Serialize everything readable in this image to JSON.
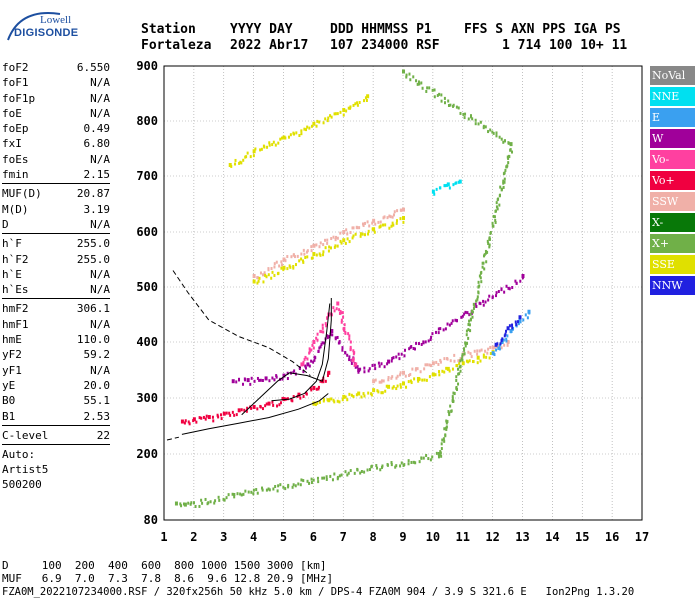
{
  "logo": {
    "line1": "Lowell",
    "line2": "DIGISONDE"
  },
  "header": {
    "labels": [
      "Station",
      "YYYY DAY",
      "DDD HHMMSS P1",
      "FFS S AXN PPS IGA PS"
    ],
    "values": [
      "Fortaleza",
      "2022 Abr17",
      "107 234000 RSF",
      "1 714 100 10+ 11"
    ]
  },
  "params_group1": [
    {
      "name": "foF2",
      "value": "6.550"
    },
    {
      "name": "foF1",
      "value": "N/A"
    },
    {
      "name": "foF1p",
      "value": "N/A"
    },
    {
      "name": "foE",
      "value": "N/A"
    },
    {
      "name": "foEp",
      "value": "0.49"
    },
    {
      "name": "fxI",
      "value": "6.80"
    },
    {
      "name": "foEs",
      "value": "N/A"
    },
    {
      "name": "fmin",
      "value": "2.15"
    }
  ],
  "params_group2": [
    {
      "name": "MUF(D)",
      "value": "20.87"
    },
    {
      "name": "M(D)",
      "value": "3.19"
    },
    {
      "name": "D",
      "value": "N/A"
    }
  ],
  "params_group3": [
    {
      "name": "h`F",
      "value": "255.0"
    },
    {
      "name": "h`F2",
      "value": "255.0"
    },
    {
      "name": "h`E",
      "value": "N/A"
    },
    {
      "name": "h`Es",
      "value": "N/A"
    }
  ],
  "params_group4": [
    {
      "name": "hmF2",
      "value": "306.1"
    },
    {
      "name": "hmF1",
      "value": "N/A"
    },
    {
      "name": "hmE",
      "value": "110.0"
    },
    {
      "name": "yF2",
      "value": "59.2"
    },
    {
      "name": "yF1",
      "value": "N/A"
    },
    {
      "name": "yE",
      "value": "20.0"
    },
    {
      "name": "B0",
      "value": "55.1"
    },
    {
      "name": "B1",
      "value": "2.53"
    }
  ],
  "params_group5": [
    {
      "name": "C-level",
      "value": "22"
    }
  ],
  "auto_label": "Auto:",
  "artist": "Artist5",
  "artist_version": "500200",
  "legend": [
    {
      "label": "NoVal",
      "color": "#888888"
    },
    {
      "label": "NNE",
      "color": "#00e0f0"
    },
    {
      "label": "E",
      "color": "#3aa0f0"
    },
    {
      "label": "W",
      "color": "#a0009a"
    },
    {
      "label": "Vo-",
      "color": "#ff40a0"
    },
    {
      "label": "Vo+",
      "color": "#f00040"
    },
    {
      "label": "SSW",
      "color": "#f0b0a8"
    },
    {
      "label": "X-",
      "color": "#087808"
    },
    {
      "label": "X+",
      "color": "#70b048"
    },
    {
      "label": "SSE",
      "color": "#e0e000"
    },
    {
      "label": "NNW",
      "color": "#2020e0"
    }
  ],
  "bottom": {
    "d_row": "D     100  200  400  600  800 1000 1500 3000 [km]",
    "muf_row": "MUF   6.9  7.0  7.3  7.8  8.6  9.6 12.8 20.9 [MHz]",
    "file_row": "FZA0M_2022107234000.RSF / 320fx256h 50 kHz 5.0 km / DPS-4 FZA0M 904 / 3.9 S 321.6 E   Ion2Png 1.3.20"
  },
  "chart_data": {
    "type": "scatter",
    "xlim": [
      1,
      17
    ],
    "ylim": [
      80,
      900
    ],
    "x_ticks": [
      "1",
      "2",
      "3",
      "4",
      "5",
      "6",
      "7",
      "8",
      "9",
      "10",
      "11",
      "12",
      "13",
      "14",
      "15",
      "16",
      "17"
    ],
    "y_ticks": [
      "80",
      "200",
      "300",
      "400",
      "500",
      "600",
      "700",
      "800",
      "900"
    ],
    "grid": true,
    "traces": [
      {
        "name": "F2 O-trace",
        "color": "#f00040",
        "points": [
          [
            1.6,
            258
          ],
          [
            2.0,
            262
          ],
          [
            2.5,
            266
          ],
          [
            3.0,
            272
          ],
          [
            3.5,
            278
          ],
          [
            4.0,
            284
          ],
          [
            4.5,
            290
          ],
          [
            5.0,
            298
          ],
          [
            5.5,
            306
          ],
          [
            6.0,
            318
          ],
          [
            6.3,
            330
          ],
          [
            6.5,
            345
          ]
        ]
      },
      {
        "name": "F2 X-trace",
        "color": "#e0e000",
        "points": [
          [
            6.0,
            290
          ],
          [
            6.5,
            296
          ],
          [
            7.0,
            302
          ],
          [
            7.5,
            308
          ],
          [
            8.0,
            314
          ],
          [
            8.5,
            320
          ],
          [
            9.0,
            326
          ],
          [
            9.5,
            334
          ],
          [
            10.0,
            342
          ],
          [
            10.5,
            352
          ],
          [
            11.0,
            362
          ],
          [
            11.5,
            372
          ],
          [
            12.0,
            382
          ]
        ]
      },
      {
        "name": "F2 spread",
        "color": "#f0b0a8",
        "points": [
          [
            8.0,
            330
          ],
          [
            9.0,
            345
          ],
          [
            10.0,
            362
          ],
          [
            11.0,
            378
          ],
          [
            12.0,
            390
          ],
          [
            12.5,
            400
          ]
        ]
      },
      {
        "name": "NNE/E spread",
        "color": "#3aa0f0",
        "points": [
          [
            12.0,
            380
          ],
          [
            12.3,
            400
          ],
          [
            12.6,
            420
          ],
          [
            12.9,
            440
          ],
          [
            13.2,
            455
          ]
        ]
      },
      {
        "name": "NNW spread",
        "color": "#2020e0",
        "points": [
          [
            12.1,
            395
          ],
          [
            12.5,
            425
          ],
          [
            12.9,
            445
          ]
        ]
      },
      {
        "name": "W spread",
        "color": "#a0009a",
        "points": [
          [
            3.3,
            330
          ],
          [
            3.8,
            332
          ],
          [
            4.4,
            335
          ],
          [
            5.0,
            340
          ],
          [
            5.8,
            360
          ],
          [
            6.6,
            420
          ],
          [
            7.5,
            350
          ],
          [
            8.5,
            365
          ],
          [
            13.0,
            520
          ]
        ]
      },
      {
        "name": "Vo- spread",
        "color": "#ff40a0",
        "points": [
          [
            5.6,
            360
          ],
          [
            6.0,
            400
          ],
          [
            6.5,
            450
          ],
          [
            6.8,
            470
          ],
          [
            7.4,
            360
          ]
        ]
      },
      {
        "name": "2F SSW",
        "color": "#f0b0a8",
        "points": [
          [
            4.0,
            520
          ],
          [
            5.0,
            550
          ],
          [
            6.0,
            575
          ],
          [
            7.0,
            600
          ],
          [
            8.0,
            620
          ],
          [
            9.0,
            640
          ]
        ]
      },
      {
        "name": "2F SSE",
        "color": "#e0e000",
        "points": [
          [
            4.0,
            510
          ],
          [
            5.0,
            535
          ],
          [
            6.0,
            560
          ],
          [
            7.0,
            585
          ],
          [
            8.0,
            605
          ],
          [
            9.0,
            625
          ]
        ]
      },
      {
        "name": "2F NNE",
        "color": "#00e0f0",
        "points": [
          [
            10.0,
            672
          ],
          [
            10.5,
            685
          ],
          [
            10.9,
            690
          ]
        ]
      },
      {
        "name": "3F SSE",
        "color": "#e0e000",
        "points": [
          [
            3.2,
            720
          ],
          [
            4.0,
            745
          ],
          [
            5.0,
            770
          ],
          [
            6.0,
            795
          ],
          [
            7.0,
            820
          ],
          [
            7.8,
            845
          ]
        ]
      },
      {
        "name": "X+ low",
        "color": "#70b048",
        "points": [
          [
            1.4,
            110
          ],
          [
            1.7,
            108
          ],
          [
            10.2,
            200
          ],
          [
            12.6,
            758
          ],
          [
            9.0,
            890
          ]
        ]
      }
    ],
    "curves": [
      {
        "name": "profile",
        "style": "solid",
        "points": [
          [
            1.6,
            235
          ],
          [
            2.5,
            245
          ],
          [
            3.5,
            255
          ],
          [
            4.5,
            265
          ],
          [
            5.5,
            280
          ],
          [
            6.2,
            295
          ],
          [
            6.5,
            308
          ]
        ]
      },
      {
        "name": "profile-upper",
        "style": "solid",
        "points": [
          [
            3.6,
            270
          ],
          [
            4.2,
            300
          ],
          [
            4.8,
            330
          ],
          [
            5.2,
            345
          ],
          [
            5.8,
            340
          ],
          [
            6.3,
            330
          ],
          [
            6.5,
            370
          ],
          [
            6.6,
            440
          ],
          [
            6.6,
            480
          ]
        ]
      },
      {
        "name": "virtual-height",
        "style": "solid",
        "points": [
          [
            4.6,
            295
          ],
          [
            5.2,
            298
          ],
          [
            5.7,
            308
          ],
          [
            6.1,
            330
          ],
          [
            6.3,
            360
          ],
          [
            6.45,
            420
          ],
          [
            6.55,
            470
          ]
        ]
      },
      {
        "name": "valley",
        "style": "dashed",
        "points": [
          [
            1.3,
            530
          ],
          [
            1.8,
            490
          ],
          [
            2.5,
            440
          ],
          [
            3.5,
            410
          ],
          [
            4.5,
            390
          ],
          [
            5.3,
            365
          ],
          [
            5.9,
            340
          ]
        ]
      },
      {
        "name": "bottom-dash",
        "style": "dashed",
        "points": [
          [
            1.1,
            225
          ],
          [
            1.5,
            230
          ]
        ]
      }
    ]
  }
}
